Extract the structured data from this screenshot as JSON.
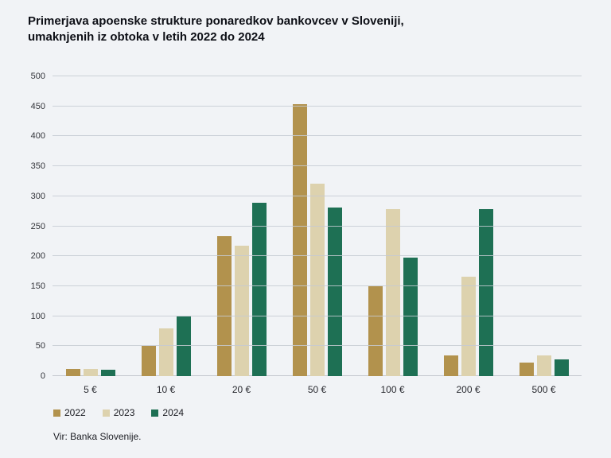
{
  "title_lines": [
    "Primerjava apoenske strukture ponaredkov bankovcev v Sloveniji,",
    "umaknjenih iz obtoka v letih 2022 do 2024"
  ],
  "source": "Vir: Banka Slovenije.",
  "colors": {
    "background": "#f1f3f6",
    "gridline": "#c5cad2",
    "series_2022": "#b2924d",
    "series_2023": "#ddd2ae",
    "series_2024": "#1e7054",
    "title_text": "#0d0f16",
    "tick_text": "#33343a"
  },
  "chart_data": {
    "type": "bar",
    "title": "Primerjava apoenske strukture ponaredkov bankovcev v Sloveniji, umaknjenih iz obtoka v letih 2022 do 2024",
    "categories": [
      "5 €",
      "10 €",
      "20 €",
      "50 €",
      "100 €",
      "200 €",
      "500 €"
    ],
    "series": [
      {
        "name": "2022",
        "color": "#b2924d",
        "values": [
          12,
          50,
          234,
          453,
          150,
          34,
          22
        ]
      },
      {
        "name": "2023",
        "color": "#ddd2ae",
        "values": [
          12,
          80,
          217,
          321,
          278,
          166,
          35
        ]
      },
      {
        "name": "2024",
        "color": "#1e7054",
        "values": [
          10,
          99,
          289,
          281,
          198,
          278,
          28
        ]
      }
    ],
    "xlabel": "",
    "ylabel": "",
    "ylim": [
      0,
      500
    ],
    "ytick_step": 50,
    "grid": true,
    "legend_position": "bottom-left"
  }
}
